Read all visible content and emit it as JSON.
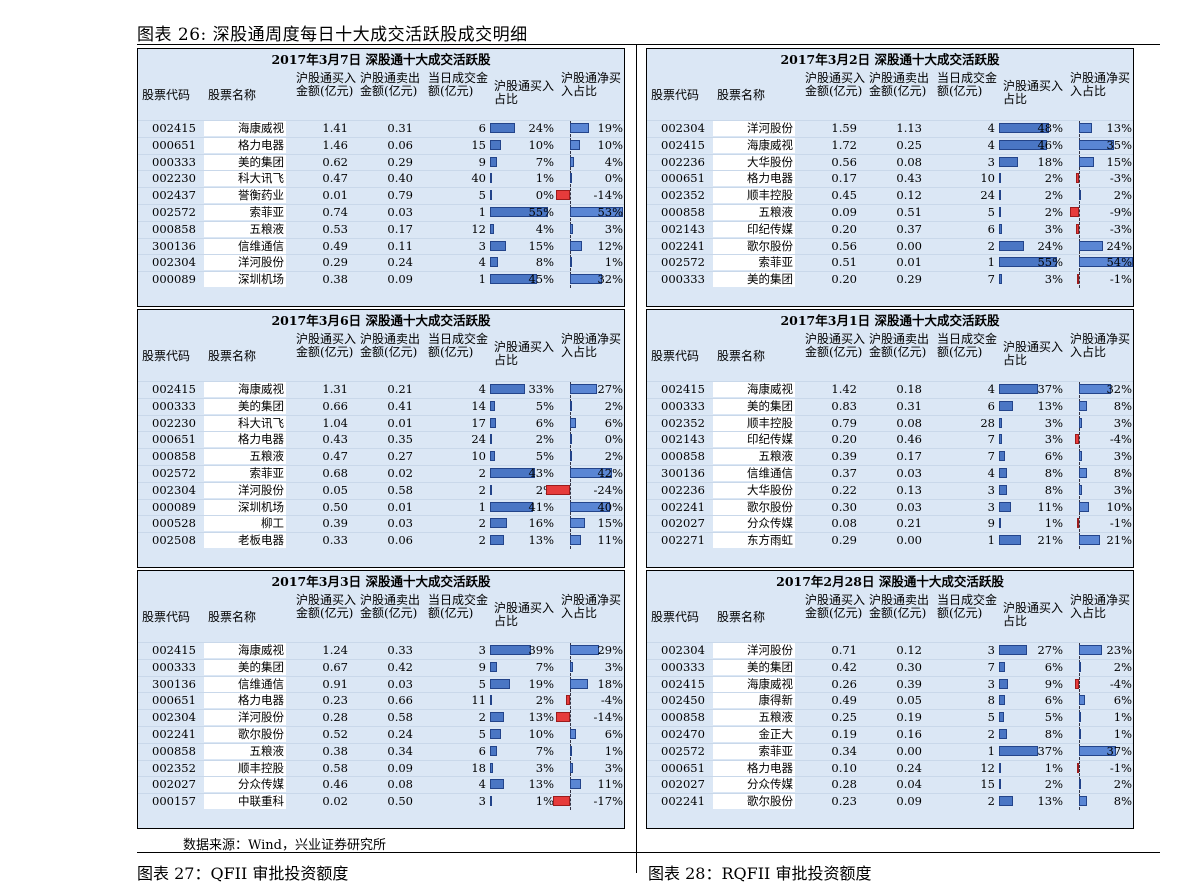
{
  "figure_title": "图表 26: 深股通周度每日十大成交活跃股成交明细",
  "columns": {
    "code": "股票代码",
    "name": "股票名称",
    "buy": "沪股通买入金额(亿元)",
    "sell": "沪股通卖出金额(亿元)",
    "vol": "当日成交金额(亿元)",
    "buy_ratio": "沪股通买入占比",
    "net_ratio": "沪股通净买入占比"
  },
  "panels": [
    {
      "title": "2017年3月7日  深股通十大成交活跃股",
      "rows": [
        {
          "code": "002415",
          "name": "海康威视",
          "buy": "1.41",
          "sell": "0.31",
          "vol": "6",
          "buy_ratio": "24%",
          "net_ratio": "19%",
          "b": 0.24,
          "n": 0.19
        },
        {
          "code": "000651",
          "name": "格力电器",
          "buy": "1.46",
          "sell": "0.06",
          "vol": "15",
          "buy_ratio": "10%",
          "net_ratio": "10%",
          "b": 0.1,
          "n": 0.1
        },
        {
          "code": "000333",
          "name": "美的集团",
          "buy": "0.62",
          "sell": "0.29",
          "vol": "9",
          "buy_ratio": "7%",
          "net_ratio": "4%",
          "b": 0.07,
          "n": 0.04
        },
        {
          "code": "002230",
          "name": "科大讯飞",
          "buy": "0.47",
          "sell": "0.40",
          "vol": "40",
          "buy_ratio": "1%",
          "net_ratio": "0%",
          "b": 0.01,
          "n": 0.0
        },
        {
          "code": "002437",
          "name": "誉衡药业",
          "buy": "0.01",
          "sell": "0.79",
          "vol": "5",
          "buy_ratio": "0%",
          "net_ratio": "-14%",
          "b": 0.0,
          "n": -0.14
        },
        {
          "code": "002572",
          "name": "索菲亚",
          "buy": "0.74",
          "sell": "0.03",
          "vol": "1",
          "buy_ratio": "55%",
          "net_ratio": "53%",
          "b": 0.55,
          "n": 0.53
        },
        {
          "code": "000858",
          "name": "五粮液",
          "buy": "0.53",
          "sell": "0.17",
          "vol": "12",
          "buy_ratio": "4%",
          "net_ratio": "3%",
          "b": 0.04,
          "n": 0.03
        },
        {
          "code": "300136",
          "name": "信维通信",
          "buy": "0.49",
          "sell": "0.11",
          "vol": "3",
          "buy_ratio": "15%",
          "net_ratio": "12%",
          "b": 0.15,
          "n": 0.12
        },
        {
          "code": "002304",
          "name": "洋河股份",
          "buy": "0.29",
          "sell": "0.24",
          "vol": "4",
          "buy_ratio": "8%",
          "net_ratio": "1%",
          "b": 0.08,
          "n": 0.01
        },
        {
          "code": "000089",
          "name": "深圳机场",
          "buy": "0.38",
          "sell": "0.09",
          "vol": "1",
          "buy_ratio": "45%",
          "net_ratio": "32%",
          "b": 0.45,
          "n": 0.32
        }
      ]
    },
    {
      "title": "2017年3月2日  深股通十大成交活跃股",
      "rows": [
        {
          "code": "002304",
          "name": "洋河股份",
          "buy": "1.59",
          "sell": "1.13",
          "vol": "4",
          "buy_ratio": "48%",
          "net_ratio": "13%",
          "b": 0.48,
          "n": 0.13
        },
        {
          "code": "002415",
          "name": "海康威视",
          "buy": "1.72",
          "sell": "0.25",
          "vol": "4",
          "buy_ratio": "46%",
          "net_ratio": "35%",
          "b": 0.46,
          "n": 0.35
        },
        {
          "code": "002236",
          "name": "大华股份",
          "buy": "0.56",
          "sell": "0.08",
          "vol": "3",
          "buy_ratio": "18%",
          "net_ratio": "15%",
          "b": 0.18,
          "n": 0.15
        },
        {
          "code": "000651",
          "name": "格力电器",
          "buy": "0.17",
          "sell": "0.43",
          "vol": "10",
          "buy_ratio": "2%",
          "net_ratio": "-3%",
          "b": 0.02,
          "n": -0.03
        },
        {
          "code": "002352",
          "name": "顺丰控股",
          "buy": "0.45",
          "sell": "0.12",
          "vol": "24",
          "buy_ratio": "2%",
          "net_ratio": "2%",
          "b": 0.02,
          "n": 0.02
        },
        {
          "code": "000858",
          "name": "五粮液",
          "buy": "0.09",
          "sell": "0.51",
          "vol": "5",
          "buy_ratio": "2%",
          "net_ratio": "-9%",
          "b": 0.02,
          "n": -0.09
        },
        {
          "code": "002143",
          "name": "印纪传媒",
          "buy": "0.20",
          "sell": "0.37",
          "vol": "6",
          "buy_ratio": "3%",
          "net_ratio": "-3%",
          "b": 0.03,
          "n": -0.03
        },
        {
          "code": "002241",
          "name": "歌尔股份",
          "buy": "0.56",
          "sell": "0.00",
          "vol": "2",
          "buy_ratio": "24%",
          "net_ratio": "24%",
          "b": 0.24,
          "n": 0.24
        },
        {
          "code": "002572",
          "name": "索菲亚",
          "buy": "0.51",
          "sell": "0.01",
          "vol": "1",
          "buy_ratio": "55%",
          "net_ratio": "54%",
          "b": 0.55,
          "n": 0.54
        },
        {
          "code": "000333",
          "name": "美的集团",
          "buy": "0.20",
          "sell": "0.29",
          "vol": "7",
          "buy_ratio": "3%",
          "net_ratio": "-1%",
          "b": 0.03,
          "n": -0.01
        }
      ]
    },
    {
      "title": "2017年3月6日  深股通十大成交活跃股",
      "rows": [
        {
          "code": "002415",
          "name": "海康威视",
          "buy": "1.31",
          "sell": "0.21",
          "vol": "4",
          "buy_ratio": "33%",
          "net_ratio": "27%",
          "b": 0.33,
          "n": 0.27
        },
        {
          "code": "000333",
          "name": "美的集团",
          "buy": "0.66",
          "sell": "0.41",
          "vol": "14",
          "buy_ratio": "5%",
          "net_ratio": "2%",
          "b": 0.05,
          "n": 0.02
        },
        {
          "code": "002230",
          "name": "科大讯飞",
          "buy": "1.04",
          "sell": "0.01",
          "vol": "17",
          "buy_ratio": "6%",
          "net_ratio": "6%",
          "b": 0.06,
          "n": 0.06
        },
        {
          "code": "000651",
          "name": "格力电器",
          "buy": "0.43",
          "sell": "0.35",
          "vol": "24",
          "buy_ratio": "2%",
          "net_ratio": "0%",
          "b": 0.02,
          "n": 0.0
        },
        {
          "code": "000858",
          "name": "五粮液",
          "buy": "0.47",
          "sell": "0.27",
          "vol": "10",
          "buy_ratio": "5%",
          "net_ratio": "2%",
          "b": 0.05,
          "n": 0.02
        },
        {
          "code": "002572",
          "name": "索菲亚",
          "buy": "0.68",
          "sell": "0.02",
          "vol": "2",
          "buy_ratio": "43%",
          "net_ratio": "42%",
          "b": 0.43,
          "n": 0.42
        },
        {
          "code": "002304",
          "name": "洋河股份",
          "buy": "0.05",
          "sell": "0.58",
          "vol": "2",
          "buy_ratio": "2%",
          "net_ratio": "-24%",
          "b": 0.02,
          "n": -0.24
        },
        {
          "code": "000089",
          "name": "深圳机场",
          "buy": "0.50",
          "sell": "0.01",
          "vol": "1",
          "buy_ratio": "41%",
          "net_ratio": "40%",
          "b": 0.41,
          "n": 0.4
        },
        {
          "code": "000528",
          "name": "柳工",
          "buy": "0.39",
          "sell": "0.03",
          "vol": "2",
          "buy_ratio": "16%",
          "net_ratio": "15%",
          "b": 0.16,
          "n": 0.15
        },
        {
          "code": "002508",
          "name": "老板电器",
          "buy": "0.33",
          "sell": "0.06",
          "vol": "2",
          "buy_ratio": "13%",
          "net_ratio": "11%",
          "b": 0.13,
          "n": 0.11
        }
      ]
    },
    {
      "title": "2017年3月1日  深股通十大成交活跃股",
      "rows": [
        {
          "code": "002415",
          "name": "海康威视",
          "buy": "1.42",
          "sell": "0.18",
          "vol": "4",
          "buy_ratio": "37%",
          "net_ratio": "32%",
          "b": 0.37,
          "n": 0.32
        },
        {
          "code": "000333",
          "name": "美的集团",
          "buy": "0.83",
          "sell": "0.31",
          "vol": "6",
          "buy_ratio": "13%",
          "net_ratio": "8%",
          "b": 0.13,
          "n": 0.08
        },
        {
          "code": "002352",
          "name": "顺丰控股",
          "buy": "0.79",
          "sell": "0.08",
          "vol": "28",
          "buy_ratio": "3%",
          "net_ratio": "3%",
          "b": 0.03,
          "n": 0.03
        },
        {
          "code": "002143",
          "name": "印纪传媒",
          "buy": "0.20",
          "sell": "0.46",
          "vol": "7",
          "buy_ratio": "3%",
          "net_ratio": "-4%",
          "b": 0.03,
          "n": -0.04
        },
        {
          "code": "000858",
          "name": "五粮液",
          "buy": "0.39",
          "sell": "0.17",
          "vol": "7",
          "buy_ratio": "6%",
          "net_ratio": "3%",
          "b": 0.06,
          "n": 0.03
        },
        {
          "code": "300136",
          "name": "信维通信",
          "buy": "0.37",
          "sell": "0.03",
          "vol": "4",
          "buy_ratio": "8%",
          "net_ratio": "8%",
          "b": 0.08,
          "n": 0.08
        },
        {
          "code": "002236",
          "name": "大华股份",
          "buy": "0.22",
          "sell": "0.13",
          "vol": "3",
          "buy_ratio": "8%",
          "net_ratio": "3%",
          "b": 0.08,
          "n": 0.03
        },
        {
          "code": "002241",
          "name": "歌尔股份",
          "buy": "0.30",
          "sell": "0.03",
          "vol": "3",
          "buy_ratio": "11%",
          "net_ratio": "10%",
          "b": 0.11,
          "n": 0.1
        },
        {
          "code": "002027",
          "name": "分众传媒",
          "buy": "0.08",
          "sell": "0.21",
          "vol": "9",
          "buy_ratio": "1%",
          "net_ratio": "-1%",
          "b": 0.01,
          "n": -0.01
        },
        {
          "code": "002271",
          "name": "东方雨虹",
          "buy": "0.29",
          "sell": "0.00",
          "vol": "1",
          "buy_ratio": "21%",
          "net_ratio": "21%",
          "b": 0.21,
          "n": 0.21
        }
      ]
    },
    {
      "title": "2017年3月3日  深股通十大成交活跃股",
      "rows": [
        {
          "code": "002415",
          "name": "海康威视",
          "buy": "1.24",
          "sell": "0.33",
          "vol": "3",
          "buy_ratio": "39%",
          "net_ratio": "29%",
          "b": 0.39,
          "n": 0.29
        },
        {
          "code": "000333",
          "name": "美的集团",
          "buy": "0.67",
          "sell": "0.42",
          "vol": "9",
          "buy_ratio": "7%",
          "net_ratio": "3%",
          "b": 0.07,
          "n": 0.03
        },
        {
          "code": "300136",
          "name": "信维通信",
          "buy": "0.91",
          "sell": "0.03",
          "vol": "5",
          "buy_ratio": "19%",
          "net_ratio": "18%",
          "b": 0.19,
          "n": 0.18
        },
        {
          "code": "000651",
          "name": "格力电器",
          "buy": "0.23",
          "sell": "0.66",
          "vol": "11",
          "buy_ratio": "2%",
          "net_ratio": "-4%",
          "b": 0.02,
          "n": -0.04
        },
        {
          "code": "002304",
          "name": "洋河股份",
          "buy": "0.28",
          "sell": "0.58",
          "vol": "2",
          "buy_ratio": "13%",
          "net_ratio": "-14%",
          "b": 0.13,
          "n": -0.14
        },
        {
          "code": "002241",
          "name": "歌尔股份",
          "buy": "0.52",
          "sell": "0.24",
          "vol": "5",
          "buy_ratio": "10%",
          "net_ratio": "6%",
          "b": 0.1,
          "n": 0.06
        },
        {
          "code": "000858",
          "name": "五粮液",
          "buy": "0.38",
          "sell": "0.34",
          "vol": "6",
          "buy_ratio": "7%",
          "net_ratio": "1%",
          "b": 0.07,
          "n": 0.01
        },
        {
          "code": "002352",
          "name": "顺丰控股",
          "buy": "0.58",
          "sell": "0.09",
          "vol": "18",
          "buy_ratio": "3%",
          "net_ratio": "3%",
          "b": 0.03,
          "n": 0.03
        },
        {
          "code": "002027",
          "name": "分众传媒",
          "buy": "0.46",
          "sell": "0.08",
          "vol": "4",
          "buy_ratio": "13%",
          "net_ratio": "11%",
          "b": 0.13,
          "n": 0.11
        },
        {
          "code": "000157",
          "name": "中联重科",
          "buy": "0.02",
          "sell": "0.50",
          "vol": "3",
          "buy_ratio": "1%",
          "net_ratio": "-17%",
          "b": 0.01,
          "n": -0.17
        }
      ]
    },
    {
      "title": "2017年2月28日  深股通十大成交活跃股",
      "rows": [
        {
          "code": "002304",
          "name": "洋河股份",
          "buy": "0.71",
          "sell": "0.12",
          "vol": "3",
          "buy_ratio": "27%",
          "net_ratio": "23%",
          "b": 0.27,
          "n": 0.23
        },
        {
          "code": "000333",
          "name": "美的集团",
          "buy": "0.42",
          "sell": "0.30",
          "vol": "7",
          "buy_ratio": "6%",
          "net_ratio": "2%",
          "b": 0.06,
          "n": 0.02
        },
        {
          "code": "002415",
          "name": "海康威视",
          "buy": "0.26",
          "sell": "0.39",
          "vol": "3",
          "buy_ratio": "9%",
          "net_ratio": "-4%",
          "b": 0.09,
          "n": -0.04
        },
        {
          "code": "002450",
          "name": "康得新",
          "buy": "0.49",
          "sell": "0.05",
          "vol": "8",
          "buy_ratio": "6%",
          "net_ratio": "6%",
          "b": 0.06,
          "n": 0.06
        },
        {
          "code": "000858",
          "name": "五粮液",
          "buy": "0.25",
          "sell": "0.19",
          "vol": "5",
          "buy_ratio": "5%",
          "net_ratio": "1%",
          "b": 0.05,
          "n": 0.01
        },
        {
          "code": "002470",
          "name": "金正大",
          "buy": "0.19",
          "sell": "0.16",
          "vol": "2",
          "buy_ratio": "8%",
          "net_ratio": "1%",
          "b": 0.08,
          "n": 0.01
        },
        {
          "code": "002572",
          "name": "索菲亚",
          "buy": "0.34",
          "sell": "0.00",
          "vol": "1",
          "buy_ratio": "37%",
          "net_ratio": "37%",
          "b": 0.37,
          "n": 0.37
        },
        {
          "code": "000651",
          "name": "格力电器",
          "buy": "0.10",
          "sell": "0.24",
          "vol": "12",
          "buy_ratio": "1%",
          "net_ratio": "-1%",
          "b": 0.01,
          "n": -0.01
        },
        {
          "code": "002027",
          "name": "分众传媒",
          "buy": "0.28",
          "sell": "0.04",
          "vol": "15",
          "buy_ratio": "2%",
          "net_ratio": "2%",
          "b": 0.02,
          "n": 0.02
        },
        {
          "code": "002241",
          "name": "歌尔股份",
          "buy": "0.23",
          "sell": "0.09",
          "vol": "2",
          "buy_ratio": "13%",
          "net_ratio": "8%",
          "b": 0.13,
          "n": 0.08
        }
      ]
    }
  ],
  "source_note": "数据来源：Wind，兴业证券研究所",
  "next_left_title": "图表 27：QFII 审批投资额度",
  "next_right_title": "图表 28：RQFII 审批投资额度"
}
